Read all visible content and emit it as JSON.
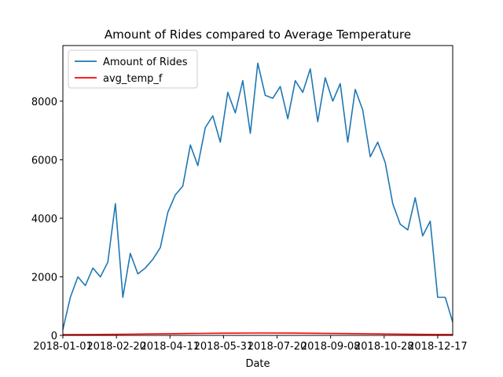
{
  "chart_data": {
    "type": "line",
    "title": "Amount of Rides compared to Average Temperature",
    "xlabel": "Date",
    "ylabel": "",
    "xlim": [
      "2018-01-01",
      "2018-12-31"
    ],
    "ylim": [
      0,
      9900
    ],
    "x_ticks": [
      "2018-01-01",
      "2018-02-20",
      "2018-04-11",
      "2018-05-31",
      "2018-07-20",
      "2018-09-08",
      "2018-10-28",
      "2018-12-17"
    ],
    "y_ticks": [
      0,
      2000,
      4000,
      6000,
      8000
    ],
    "grid": false,
    "legend_position": "upper-left",
    "series": [
      {
        "name": "Amount of Rides",
        "color": "#1f77b4",
        "x": [
          "2018-01-01",
          "2018-01-08",
          "2018-01-15",
          "2018-01-22",
          "2018-01-29",
          "2018-02-05",
          "2018-02-12",
          "2018-02-19",
          "2018-02-26",
          "2018-03-05",
          "2018-03-12",
          "2018-03-19",
          "2018-03-26",
          "2018-04-02",
          "2018-04-09",
          "2018-04-16",
          "2018-04-23",
          "2018-04-30",
          "2018-05-07",
          "2018-05-14",
          "2018-05-21",
          "2018-05-28",
          "2018-06-04",
          "2018-06-11",
          "2018-06-18",
          "2018-06-25",
          "2018-07-02",
          "2018-07-09",
          "2018-07-16",
          "2018-07-23",
          "2018-07-30",
          "2018-08-06",
          "2018-08-13",
          "2018-08-20",
          "2018-08-27",
          "2018-09-03",
          "2018-09-10",
          "2018-09-17",
          "2018-09-24",
          "2018-10-01",
          "2018-10-08",
          "2018-10-15",
          "2018-10-22",
          "2018-10-29",
          "2018-11-05",
          "2018-11-12",
          "2018-11-19",
          "2018-11-26",
          "2018-12-03",
          "2018-12-10",
          "2018-12-17",
          "2018-12-24",
          "2018-12-31"
        ],
        "y": [
          200,
          1300,
          2000,
          1700,
          2300,
          2000,
          2500,
          4500,
          1300,
          2800,
          2100,
          2300,
          2600,
          3000,
          4200,
          4800,
          5100,
          6500,
          5800,
          7100,
          7500,
          6600,
          8300,
          7600,
          8700,
          6900,
          9300,
          8200,
          8100,
          8500,
          7400,
          8700,
          8300,
          9100,
          7300,
          8800,
          8000,
          8600,
          6600,
          8400,
          7700,
          6100,
          6600,
          5900,
          4500,
          3800,
          3600,
          4700,
          3400,
          3900,
          1300,
          1300,
          450
        ]
      },
      {
        "name": "avg_temp_f",
        "color": "#ff0000",
        "x": [
          "2018-01-01",
          "2018-02-01",
          "2018-03-01",
          "2018-04-01",
          "2018-05-01",
          "2018-06-01",
          "2018-07-01",
          "2018-08-01",
          "2018-09-01",
          "2018-10-01",
          "2018-11-01",
          "2018-12-01",
          "2018-12-31"
        ],
        "y": [
          25,
          30,
          40,
          50,
          65,
          75,
          80,
          78,
          70,
          58,
          45,
          35,
          30
        ]
      }
    ]
  }
}
